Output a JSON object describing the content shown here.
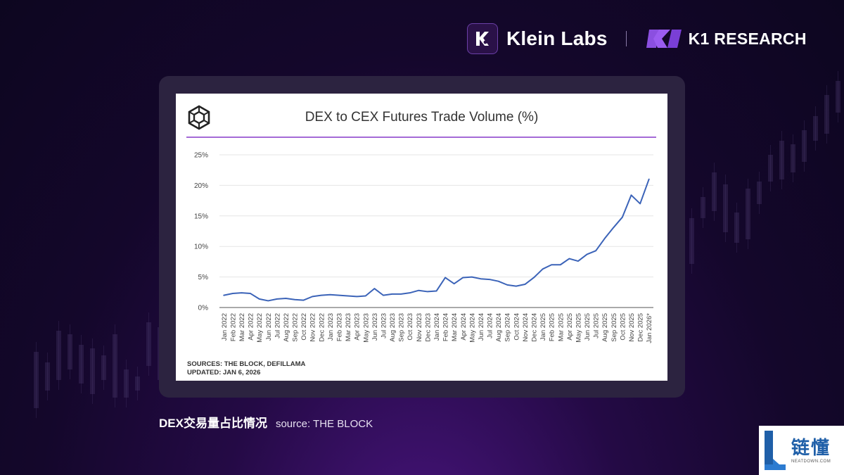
{
  "header": {
    "brand_name": "Klein Labs",
    "partner_name": "K1 RESEARCH"
  },
  "chart_data": {
    "type": "line",
    "title": "DEX to CEX Futures Trade Volume (%)",
    "xlabel": "",
    "ylabel": "",
    "ylim": [
      0,
      25
    ],
    "yticks": [
      "0%",
      "5%",
      "10%",
      "15%",
      "20%",
      "25%"
    ],
    "grid": true,
    "color": "#3b63b8",
    "x": [
      "Jan 2022",
      "Feb 2022",
      "Mar 2022",
      "Apr 2022",
      "May 2022",
      "Jun 2022",
      "Jul 2022",
      "Aug 2022",
      "Sep 2022",
      "Oct 2022",
      "Nov 2022",
      "Dec 2022",
      "Jan 2023",
      "Feb 2023",
      "Mar 2023",
      "Apr 2023",
      "May 2023",
      "Jun 2023",
      "Jul 2023",
      "Aug 2023",
      "Sep 2023",
      "Oct 2023",
      "Nov 2023",
      "Dec 2023",
      "Jan 2024",
      "Feb 2024",
      "Mar 2024",
      "Apr 2024",
      "May 2024",
      "Jun 2024",
      "Jul 2024",
      "Aug 2024",
      "Sep 2024",
      "Oct 2024",
      "Nov 2024",
      "Dec 2024",
      "Jan 2025",
      "Feb 2025",
      "Mar 2025",
      "Apr 2025",
      "May 2025",
      "Jun 2025",
      "Jul 2025",
      "Aug 2025",
      "Sep 2025",
      "Oct 2025",
      "Nov 2025",
      "Dec 2025",
      "Jan 2026*"
    ],
    "series": [
      {
        "values": [
          2.0,
          2.3,
          2.4,
          2.3,
          1.4,
          1.1,
          1.4,
          1.5,
          1.3,
          1.2,
          1.8,
          2.0,
          2.1,
          2.0,
          1.9,
          1.8,
          1.9,
          3.1,
          2.0,
          2.2,
          2.2,
          2.4,
          2.8,
          2.6,
          2.7,
          4.9,
          3.9,
          4.9,
          5.0,
          4.7,
          4.6,
          4.3,
          3.7,
          3.5,
          3.8,
          4.9,
          6.3,
          7.0,
          7.0,
          8.0,
          7.6,
          8.7,
          9.3,
          11.3,
          13.1,
          14.8,
          18.4,
          17.0,
          21.0
        ]
      }
    ]
  },
  "sources": {
    "line1": "SOURCES: THE BLOCK, DEFILLAMA",
    "line2": "UPDATED: JAN 6, 2026"
  },
  "caption": {
    "main": "DEX交易量占比情况",
    "source": "source: THE BLOCK"
  },
  "watermark": {
    "main": "链懂",
    "sub": "NEATDOWN.COM"
  }
}
